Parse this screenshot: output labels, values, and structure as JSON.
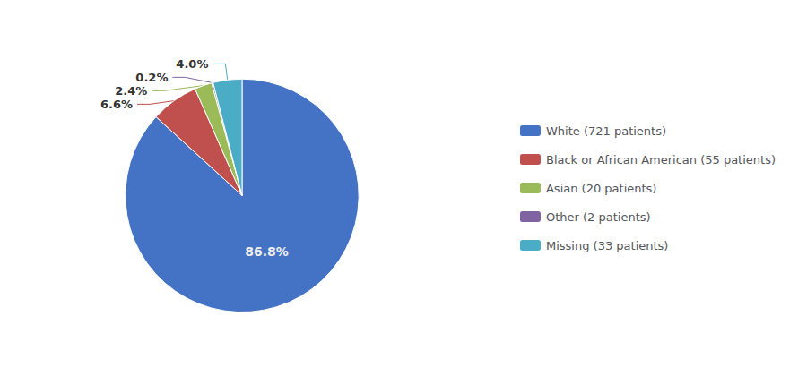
{
  "chart_data": {
    "type": "pie",
    "categories": [
      "White (721 patients)",
      "Black or African American (55 patients)",
      "Asian (20 patients)",
      "Other (2 patients)",
      "Missing (33 patients)"
    ],
    "values": [
      86.8,
      6.6,
      2.4,
      0.2,
      4.0
    ],
    "value_labels": [
      "86.8%",
      "6.6%",
      "2.4%",
      "0.2%",
      "4.0%"
    ],
    "colors": [
      "#4472C4",
      "#C0504D",
      "#9BBB59",
      "#8064A2",
      "#4BACC6"
    ],
    "legend": "right",
    "data_labels": true
  }
}
